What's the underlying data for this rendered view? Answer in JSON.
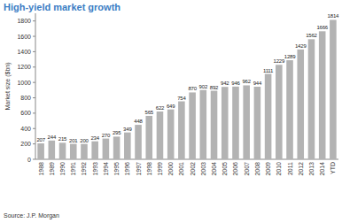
{
  "chart_data": {
    "type": "bar",
    "title": "High-yield market growth",
    "y_label": "Market size ($bn)",
    "source": "Source: J.P. Morgan",
    "categories": [
      "1988",
      "1989",
      "1990",
      "1991",
      "1992",
      "1993",
      "1994",
      "1995",
      "1996",
      "1997",
      "1998",
      "1999",
      "2000",
      "2001",
      "2002",
      "2003",
      "2004",
      "2005",
      "2006",
      "2007",
      "2008",
      "2009",
      "2010",
      "2011",
      "2012",
      "2013",
      "2014",
      "YTD"
    ],
    "values": [
      207,
      244,
      215,
      201,
      200,
      234,
      270,
      295,
      349,
      448,
      565,
      622,
      649,
      754,
      870,
      902,
      892,
      942,
      946,
      962,
      944,
      1111,
      1229,
      1289,
      1429,
      1562,
      1666,
      1814
    ],
    "color": "#b3b3b3",
    "ylim": [
      0,
      1900
    ],
    "yticks": [
      0,
      200,
      400,
      600,
      800,
      1000,
      1200,
      1400,
      1600,
      1800
    ],
    "grid": false,
    "data_labels": true
  }
}
